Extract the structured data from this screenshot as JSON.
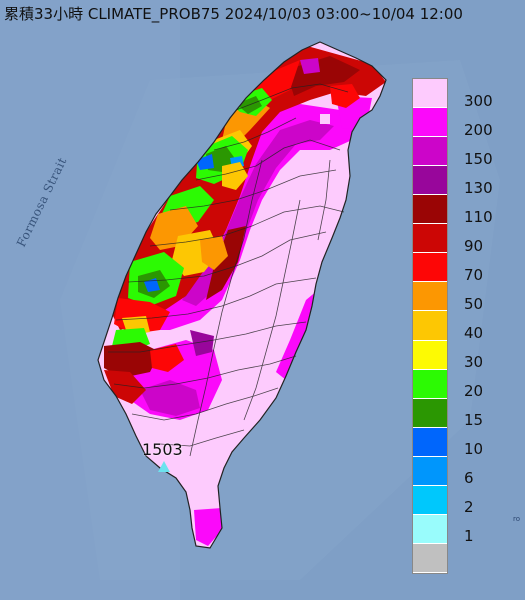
{
  "title": "累積33小時 CLIMATE_PROB75 2024/10/03 03:00~10/04 12:00",
  "sea_label": "Formosa Strait",
  "max_value_label": "1503",
  "corner_mark": "ro",
  "legend": [
    {
      "label": "300",
      "color": "#fdcbfd"
    },
    {
      "label": "200",
      "color": "#fb09fa"
    },
    {
      "label": "150",
      "color": "#cc05c9"
    },
    {
      "label": "130",
      "color": "#98069b"
    },
    {
      "label": "110",
      "color": "#9a0505"
    },
    {
      "label": "90",
      "color": "#cc0605"
    },
    {
      "label": "70",
      "color": "#fd0606"
    },
    {
      "label": "50",
      "color": "#fc9702"
    },
    {
      "label": "40",
      "color": "#fdc703"
    },
    {
      "label": "30",
      "color": "#fdfa03"
    },
    {
      "label": "20",
      "color": "#2cfa03"
    },
    {
      "label": "15",
      "color": "#2b9702"
    },
    {
      "label": "10",
      "color": "#0066fc"
    },
    {
      "label": "6",
      "color": "#0096fc"
    },
    {
      "label": "2",
      "color": "#00c8fc"
    },
    {
      "label": "1",
      "color": "#99fcfc"
    },
    {
      "label": "",
      "color": "#c0c0c0"
    }
  ],
  "colors": {
    "sea": "#7f9fc6",
    "land_bg": "#fdcbfd",
    "boundary": "#222222"
  }
}
